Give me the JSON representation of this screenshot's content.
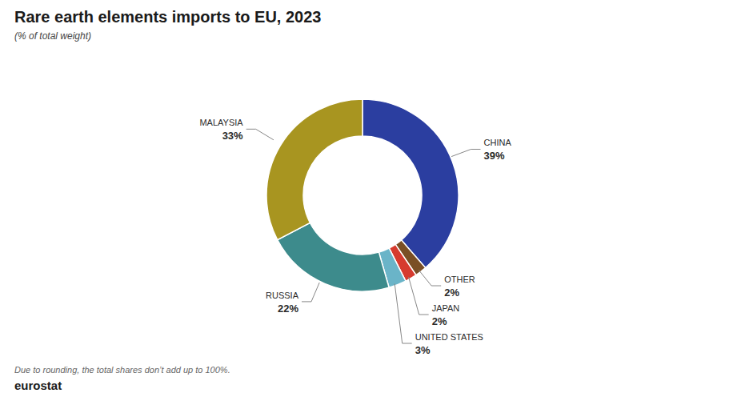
{
  "chart_data": {
    "type": "donut",
    "title": "Rare earth elements imports to EU, 2023",
    "subtitle": "(% of total weight)",
    "annotations": [
      "Due to rounding, the total shares don’t add up to 100%.",
      "eurostat"
    ],
    "categories": [
      "CHINA",
      "OTHER",
      "JAPAN",
      "UNITED STATES",
      "RUSSIA",
      "MALAYSIA"
    ],
    "values": [
      39,
      2,
      2,
      3,
      22,
      33
    ],
    "value_labels": [
      "39%",
      "2%",
      "2%",
      "3%",
      "22%",
      "33%"
    ],
    "colors": [
      "#2b3ea0",
      "#7a4f25",
      "#d63b2f",
      "#6ab4c8",
      "#3d8b8c",
      "#a89520"
    ],
    "data_labels": true
  }
}
